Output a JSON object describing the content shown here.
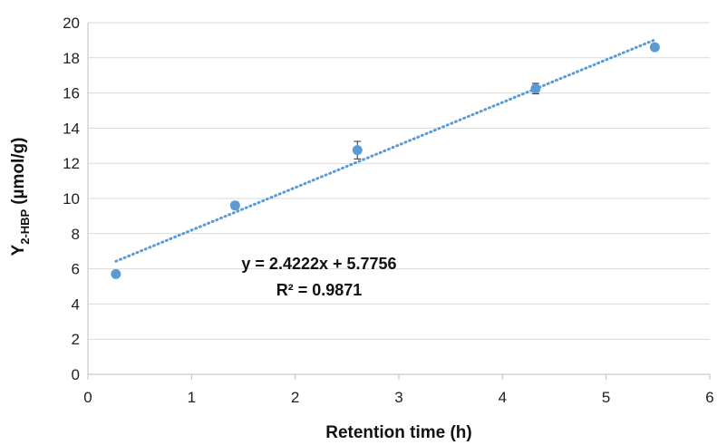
{
  "chart_data": {
    "type": "scatter",
    "x_axis": {
      "label": "Retention time (h)",
      "range": [
        0,
        6
      ],
      "ticks": [
        0,
        1,
        2,
        3,
        4,
        5,
        6
      ]
    },
    "y_axis": {
      "label_main": "Y",
      "label_sub": "2-HBP",
      "label_unit": "(µmol/g)",
      "range": [
        0,
        20
      ],
      "ticks": [
        0,
        2,
        4,
        6,
        8,
        10,
        12,
        14,
        16,
        18,
        20
      ]
    },
    "grid": "horizontal major gridlines",
    "series": [
      {
        "x": [
          0.27,
          1.42,
          2.6,
          4.32,
          5.47
        ],
        "y": [
          5.7,
          9.6,
          12.75,
          16.25,
          18.6
        ],
        "error": [
          0.15,
          0.2,
          0.5,
          0.3,
          0.15
        ],
        "color": "#5b9bd5"
      }
    ],
    "trendline": {
      "type": "linear",
      "slope": 2.4222,
      "intercept": 5.7756,
      "x_range": [
        0.27,
        5.47
      ],
      "style": "dotted",
      "color": "#5b9bd5",
      "equation_text": "y = 2.4222x + 5.7756",
      "r2_text": "R² = 0.9871"
    }
  }
}
